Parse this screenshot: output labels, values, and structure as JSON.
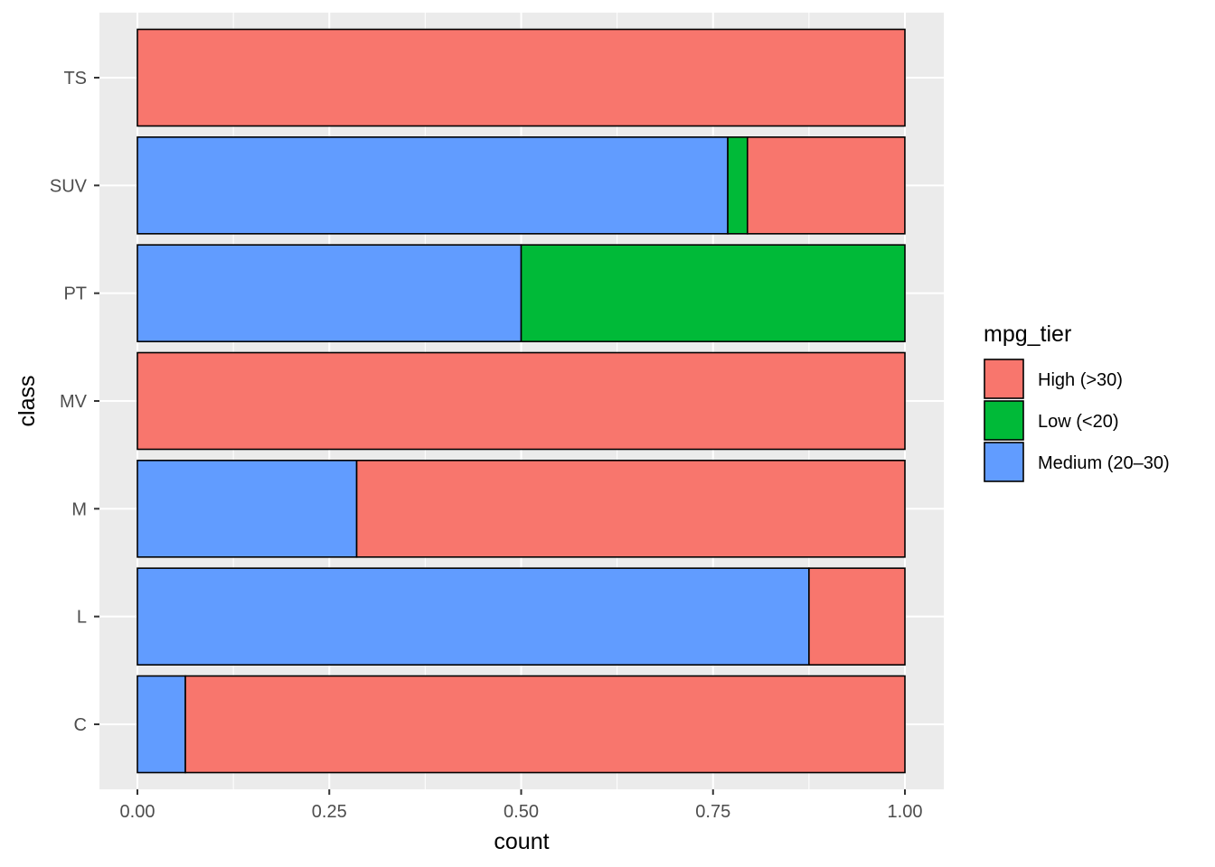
{
  "chart_data": {
    "type": "bar",
    "orientation": "horizontal",
    "stacked": "fill",
    "xlabel": "count",
    "ylabel": "class",
    "xlim": [
      0,
      1
    ],
    "x_ticks": [
      "0.00",
      "0.25",
      "0.50",
      "0.75",
      "1.00"
    ],
    "categories": [
      "C",
      "L",
      "M",
      "MV",
      "PT",
      "SUV",
      "TS"
    ],
    "series": [
      {
        "name": "High (>30)",
        "color": "#F8766D",
        "values": [
          0.9375,
          0.125,
          0.7143,
          1.0,
          0.0,
          0.2051,
          1.0
        ]
      },
      {
        "name": "Low (<20)",
        "color": "#00BA38",
        "values": [
          0.0,
          0.0,
          0.0,
          0.0,
          0.5,
          0.0256,
          0.0
        ]
      },
      {
        "name": "Medium (20–30)",
        "color": "#619CFF",
        "values": [
          0.0625,
          0.875,
          0.2857,
          0.0,
          0.5,
          0.7692,
          0.0
        ]
      }
    ],
    "legend": {
      "title": "mpg_tier",
      "position": "right"
    },
    "grid": true,
    "panel_background": "#EBEBEB"
  }
}
